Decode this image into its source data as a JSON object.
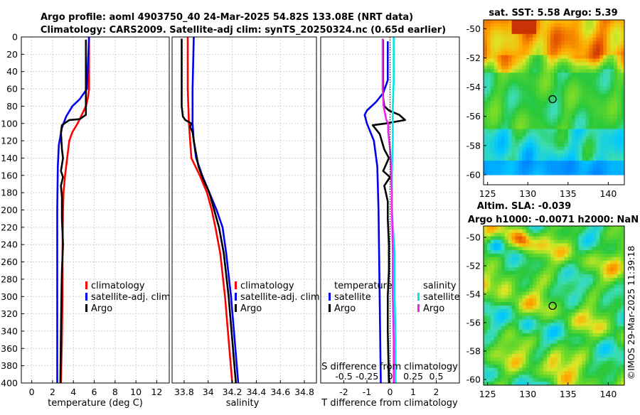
{
  "colors": {
    "climatology": "#ff0000",
    "satellite": "#0000ee",
    "argo": "#000000",
    "salinity_satellite": "#00e5ee",
    "salinity_argo": "#ee22ee"
  },
  "header": {
    "line1": "Argo profile: aoml 4903750_40 24-Mar-2025 54.82S 133.08E (NRT data)",
    "line2": "Climatology: CARS2009. Satellite-adj clim: synTS_20250324.nc (0.65d earlier)"
  },
  "depth_ticks": [
    "0",
    "20",
    "40",
    "60",
    "80",
    "100",
    "120",
    "140",
    "160",
    "180",
    "200",
    "220",
    "240",
    "260",
    "280",
    "300",
    "320",
    "340",
    "360",
    "380",
    "400"
  ],
  "chart_data": [
    {
      "id": "temperature",
      "type": "line",
      "xlabel": "temperature (deg C)",
      "ylabel": "depth",
      "xlim": [
        -1,
        13.2
      ],
      "ylim": [
        400,
        0
      ],
      "xticks": [
        "0",
        "2",
        "4",
        "6",
        "8",
        "10",
        "12"
      ],
      "legend": [
        "climatology",
        "satellite-adj. clim",
        "Argo"
      ],
      "series": [
        {
          "name": "climatology",
          "points": [
            [
              5.5,
              0
            ],
            [
              5.5,
              60
            ],
            [
              5.4,
              70
            ],
            [
              5.2,
              80
            ],
            [
              4.8,
              90
            ],
            [
              4.4,
              100
            ],
            [
              3.9,
              110
            ],
            [
              3.6,
              120
            ],
            [
              3.4,
              140
            ],
            [
              3.2,
              160
            ],
            [
              3.05,
              180
            ],
            [
              3.0,
              200
            ],
            [
              2.95,
              250
            ],
            [
              2.95,
              300
            ],
            [
              2.9,
              350
            ],
            [
              2.8,
              400
            ]
          ]
        },
        {
          "name": "satellite-adj. clim",
          "points": [
            [
              5.5,
              0
            ],
            [
              5.4,
              30
            ],
            [
              5.3,
              60
            ],
            [
              4.6,
              72
            ],
            [
              3.9,
              80
            ],
            [
              3.3,
              92
            ],
            [
              2.9,
              105
            ],
            [
              2.6,
              125
            ],
            [
              2.5,
              150
            ],
            [
              2.45,
              200
            ],
            [
              2.45,
              250
            ],
            [
              2.45,
              300
            ],
            [
              2.45,
              350
            ],
            [
              2.45,
              400
            ]
          ]
        },
        {
          "name": "Argo",
          "points": [
            [
              5.2,
              3
            ],
            [
              5.2,
              40
            ],
            [
              5.2,
              90
            ],
            [
              4.6,
              95
            ],
            [
              3.6,
              96
            ],
            [
              2.9,
              102
            ],
            [
              2.8,
              110
            ],
            [
              2.9,
              130
            ],
            [
              3.0,
              140
            ],
            [
              2.8,
              155
            ],
            [
              3.0,
              162
            ],
            [
              2.8,
              172
            ],
            [
              2.9,
              185
            ],
            [
              2.9,
              210
            ],
            [
              3.0,
              240
            ],
            [
              2.9,
              270
            ],
            [
              2.85,
              300
            ],
            [
              2.8,
              340
            ],
            [
              2.75,
              400
            ]
          ]
        }
      ]
    },
    {
      "id": "salinity",
      "type": "line",
      "xlabel": "salinity",
      "ylabel": "depth",
      "xlim": [
        33.7,
        34.9
      ],
      "ylim": [
        400,
        0
      ],
      "xticks": [
        "33.8",
        "34",
        "34.2",
        "34.4",
        "34.6",
        "34.8"
      ],
      "legend": [
        "climatology",
        "satellite-adj. clim",
        "Argo"
      ],
      "series": [
        {
          "name": "climatology",
          "points": [
            [
              33.83,
              0
            ],
            [
              33.83,
              60
            ],
            [
              33.84,
              100
            ],
            [
              33.86,
              140
            ],
            [
              33.93,
              160
            ],
            [
              33.99,
              180
            ],
            [
              34.03,
              200
            ],
            [
              34.06,
              220
            ],
            [
              34.1,
              250
            ],
            [
              34.14,
              300
            ],
            [
              34.17,
              350
            ],
            [
              34.2,
              400
            ]
          ]
        },
        {
          "name": "satellite-adj. clim",
          "points": [
            [
              33.88,
              0
            ],
            [
              33.87,
              60
            ],
            [
              33.87,
              100
            ],
            [
              33.88,
              120
            ],
            [
              33.9,
              140
            ],
            [
              33.95,
              160
            ],
            [
              34.01,
              180
            ],
            [
              34.07,
              200
            ],
            [
              34.12,
              220
            ],
            [
              34.15,
              250
            ],
            [
              34.19,
              300
            ],
            [
              34.22,
              350
            ],
            [
              34.25,
              400
            ]
          ]
        },
        {
          "name": "Argo",
          "points": [
            [
              33.78,
              2
            ],
            [
              33.78,
              80
            ],
            [
              33.79,
              92
            ],
            [
              33.81,
              96
            ],
            [
              33.86,
              100
            ],
            [
              33.85,
              104
            ],
            [
              33.87,
              110
            ],
            [
              33.88,
              120
            ],
            [
              33.9,
              135
            ],
            [
              33.92,
              150
            ],
            [
              33.96,
              165
            ],
            [
              34.01,
              180
            ],
            [
              34.05,
              200
            ],
            [
              34.09,
              220
            ],
            [
              34.13,
              250
            ],
            [
              34.17,
              300
            ],
            [
              34.2,
              350
            ],
            [
              34.23,
              400
            ]
          ]
        }
      ]
    },
    {
      "id": "difference",
      "type": "line",
      "xlabel": "T difference from climatology",
      "top_xlabel": "S difference from climatology",
      "ylabel": "depth",
      "xlim": [
        -3,
        3
      ],
      "ylim": [
        400,
        0
      ],
      "xticks": [
        "-2",
        "-1",
        "0",
        "1",
        "2"
      ],
      "sticks": [
        "-0.5",
        "-0.25",
        "0",
        "0.25",
        "0.5"
      ],
      "legend_t_title": "temperature",
      "legend_s_title": "salinity",
      "legend_t": [
        "satellite",
        "Argo"
      ],
      "legend_s": [
        "satellite",
        "Argo"
      ],
      "series": [
        {
          "name": "T satellite",
          "points": [
            [
              -0.1,
              5
            ],
            [
              -0.1,
              50
            ],
            [
              -0.3,
              65
            ],
            [
              -0.6,
              75
            ],
            [
              -1.0,
              85
            ],
            [
              -1.1,
              90
            ],
            [
              -1.0,
              100
            ],
            [
              -0.7,
              120
            ],
            [
              -0.55,
              150
            ],
            [
              -0.5,
              200
            ],
            [
              -0.45,
              300
            ],
            [
              -0.4,
              400
            ]
          ]
        },
        {
          "name": "T Argo",
          "points": [
            [
              -0.3,
              3
            ],
            [
              -0.3,
              70
            ],
            [
              -0.25,
              80
            ],
            [
              -0.05,
              85
            ],
            [
              0.4,
              90
            ],
            [
              0.65,
              96
            ],
            [
              -0.2,
              100
            ],
            [
              -0.75,
              102
            ],
            [
              -0.45,
              112
            ],
            [
              -0.25,
              130
            ],
            [
              -0.05,
              140
            ],
            [
              -0.3,
              155
            ],
            [
              0.0,
              162
            ],
            [
              -0.25,
              172
            ],
            [
              -0.1,
              190
            ],
            [
              -0.1,
              210
            ],
            [
              -0.05,
              240
            ],
            [
              -0.05,
              270
            ],
            [
              -0.1,
              300
            ],
            [
              -0.1,
              340
            ],
            [
              -0.05,
              400
            ]
          ]
        },
        {
          "name": "S satellite",
          "points": [
            [
              0.04,
              0
            ],
            [
              0.04,
              50
            ],
            [
              0.03,
              80
            ],
            [
              0.03,
              120
            ],
            [
              0.02,
              160
            ],
            [
              0.02,
              200
            ],
            [
              0.05,
              250
            ],
            [
              0.05,
              300
            ],
            [
              0.06,
              350
            ],
            [
              0.06,
              400
            ]
          ]
        },
        {
          "name": "S Argo",
          "points": [
            [
              -0.08,
              2
            ],
            [
              -0.08,
              60
            ],
            [
              -0.07,
              80
            ],
            [
              -0.04,
              96
            ],
            [
              -0.02,
              100
            ],
            [
              -0.02,
              110
            ],
            [
              0.0,
              130
            ],
            [
              0.01,
              150
            ],
            [
              0.02,
              180
            ],
            [
              0.02,
              200
            ],
            [
              0.03,
              250
            ],
            [
              0.03,
              300
            ],
            [
              0.04,
              350
            ],
            [
              0.04,
              400
            ]
          ]
        }
      ]
    }
  ],
  "maps": {
    "sst": {
      "title": "sat. SST: 5.58 Argo: 5.39",
      "yticks": [
        "-50",
        "-52",
        "-54",
        "-56",
        "-58",
        "-60"
      ],
      "xticks": [
        "125",
        "130",
        "135",
        "140"
      ],
      "lon_range": [
        124.5,
        142
      ],
      "lat_range": [
        -60,
        -49.4
      ],
      "argo_lon": 133.08,
      "argo_lat": -54.82
    },
    "sla": {
      "title1": "Altim. SLA: -0.039",
      "title2": "Argo h1000: -0.0071 h2000: NaN",
      "yticks": [
        "-50",
        "-52",
        "-54",
        "-56",
        "-58",
        "-60"
      ],
      "xticks": [
        "125",
        "130",
        "135",
        "140"
      ],
      "lon_range": [
        124.5,
        142
      ],
      "lat_range": [
        -60.4,
        -49.2
      ],
      "argo_lon": 133.08,
      "argo_lat": -54.82
    }
  },
  "watermark": "©IMOS 29-Mar-2025 11:39:18"
}
